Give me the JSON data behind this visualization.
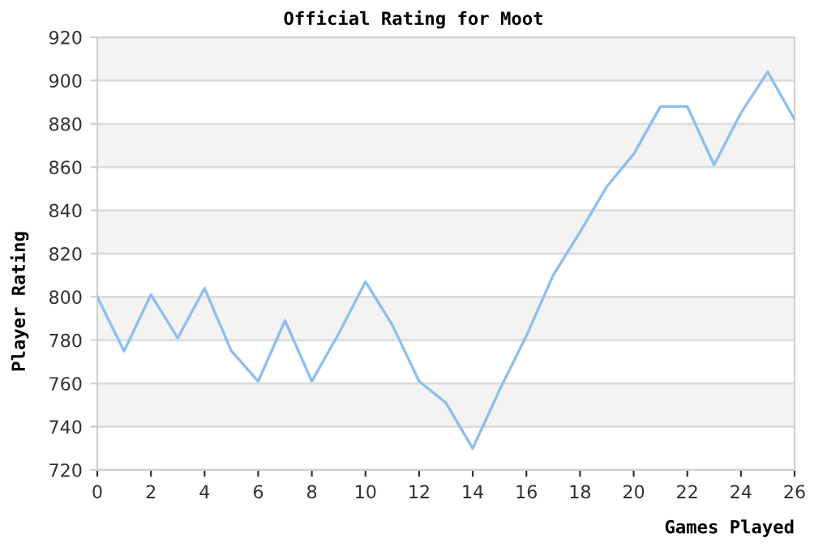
{
  "chart_data": {
    "type": "line",
    "title": "Official Rating for Moot",
    "xlabel": "Games Played",
    "ylabel": "Player Rating",
    "x": [
      0,
      1,
      2,
      3,
      4,
      5,
      6,
      7,
      8,
      9,
      10,
      11,
      12,
      13,
      14,
      15,
      16,
      17,
      18,
      19,
      20,
      21,
      22,
      23,
      24,
      25,
      26
    ],
    "series": [
      {
        "color": "#8cbff0",
        "values": [
          800,
          775,
          801,
          781,
          804,
          775,
          761,
          789,
          761,
          783,
          807,
          787,
          761,
          751,
          730,
          757,
          782,
          810,
          830,
          851,
          866,
          888,
          888,
          861,
          885,
          904,
          882
        ]
      }
    ],
    "xlim": [
      0,
      26
    ],
    "xticks": [
      0,
      2,
      4,
      6,
      8,
      10,
      12,
      14,
      16,
      18,
      20,
      22,
      24,
      26
    ],
    "ylim": [
      720,
      920
    ],
    "yticks": [
      720,
      740,
      760,
      780,
      800,
      820,
      840,
      860,
      880,
      900,
      920
    ],
    "grid": "y",
    "marker": "none",
    "line_style": "solid"
  }
}
